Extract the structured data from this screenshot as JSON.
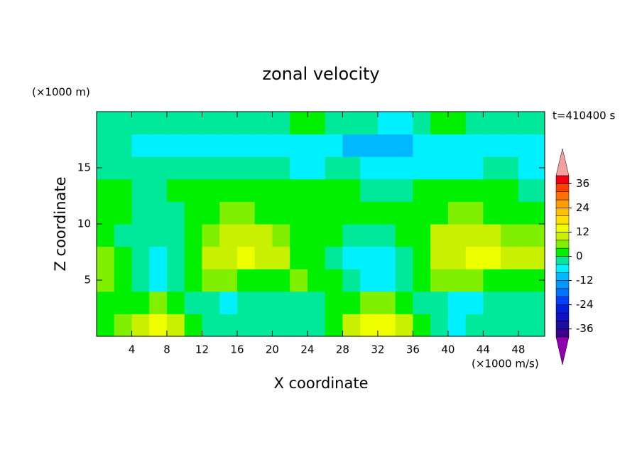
{
  "chart_data": {
    "type": "contour",
    "title": "zonal velocity",
    "x_label": "X coordinate",
    "y_label": "Z coordinate",
    "x_units": "(×1000 m/s)",
    "y_units": "(×1000 m)",
    "time_label": "t=410400 s",
    "xlim": [
      0,
      51
    ],
    "ylim": [
      0,
      20
    ],
    "xticks": [
      4,
      8,
      12,
      16,
      20,
      24,
      28,
      32,
      36,
      40,
      44,
      48
    ],
    "yticks": [
      5,
      10,
      15
    ],
    "x": [
      1,
      3,
      5,
      7,
      9,
      11,
      13,
      15,
      17,
      19,
      21,
      23,
      25,
      27,
      29,
      31,
      33,
      35,
      37,
      39,
      41,
      43,
      45,
      47,
      49
    ],
    "y": [
      1,
      3,
      5,
      7,
      9,
      11,
      13,
      15,
      17,
      19
    ],
    "z": [
      [
        2,
        6,
        10,
        14,
        10,
        2,
        -2,
        -2,
        -2,
        -2,
        -2,
        -2,
        -2,
        2,
        10,
        14,
        14,
        10,
        2,
        -2,
        -6,
        -2,
        -2,
        -2,
        -2
      ],
      [
        2,
        2,
        2,
        6,
        2,
        -2,
        -2,
        -6,
        -2,
        -2,
        -2,
        -2,
        -2,
        2,
        2,
        6,
        6,
        2,
        -2,
        -2,
        -6,
        -6,
        -2,
        -2,
        -2
      ],
      [
        6,
        2,
        -2,
        -6,
        -2,
        2,
        6,
        6,
        2,
        2,
        2,
        6,
        2,
        2,
        -2,
        -6,
        -6,
        -2,
        2,
        6,
        6,
        6,
        2,
        2,
        2
      ],
      [
        6,
        2,
        -2,
        -6,
        -2,
        2,
        10,
        10,
        14,
        10,
        10,
        2,
        2,
        -2,
        -6,
        -6,
        -6,
        -2,
        2,
        10,
        10,
        14,
        14,
        10,
        10
      ],
      [
        2,
        -2,
        -2,
        -2,
        -2,
        2,
        6,
        10,
        10,
        10,
        6,
        2,
        2,
        2,
        -2,
        -2,
        -2,
        2,
        2,
        10,
        10,
        10,
        10,
        6,
        6
      ],
      [
        2,
        2,
        -2,
        -2,
        -2,
        2,
        2,
        6,
        6,
        2,
        2,
        2,
        2,
        2,
        2,
        2,
        2,
        2,
        2,
        2,
        6,
        6,
        2,
        2,
        2
      ],
      [
        2,
        2,
        -2,
        -2,
        2,
        2,
        2,
        2,
        2,
        2,
        2,
        2,
        2,
        2,
        2,
        -2,
        -2,
        -2,
        2,
        2,
        2,
        2,
        2,
        2,
        -2
      ],
      [
        -2,
        -2,
        -2,
        -2,
        -2,
        -2,
        -2,
        -2,
        -2,
        -2,
        -2,
        -6,
        -6,
        -2,
        -2,
        -6,
        -6,
        -6,
        -6,
        -6,
        -6,
        -6,
        -2,
        -2,
        -6
      ],
      [
        -2,
        -2,
        -6,
        -6,
        -6,
        -6,
        -6,
        -6,
        -6,
        -6,
        -6,
        -6,
        -6,
        -6,
        -10,
        -10,
        -10,
        -10,
        -6,
        -6,
        -6,
        -6,
        -6,
        -6,
        -6
      ],
      [
        -2,
        -2,
        -2,
        -2,
        -2,
        -2,
        -2,
        -2,
        -2,
        -2,
        -2,
        2,
        2,
        -2,
        -2,
        -2,
        -6,
        -6,
        -2,
        2,
        2,
        -2,
        -2,
        -2,
        -2
      ]
    ],
    "levels": [
      -40,
      -36,
      -32,
      -28,
      -24,
      -20,
      -16,
      -12,
      -8,
      -4,
      0,
      4,
      8,
      12,
      16,
      20,
      24,
      28,
      32,
      36,
      40
    ],
    "colors": [
      "#3a0090",
      "#1c0ca0",
      "#1010c8",
      "#0020e0",
      "#0040ff",
      "#0070ff",
      "#0098ff",
      "#00b8ff",
      "#00f0ff",
      "#00e89a",
      "#00f000",
      "#80f000",
      "#c8f000",
      "#f0ff00",
      "#ffe000",
      "#ffc000",
      "#ff9c00",
      "#ff7000",
      "#ff4000",
      "#f00010"
    ],
    "under_color": "#9000b0",
    "over_color": "#f4a0a0",
    "colorbar_ticks": [
      -36,
      -24,
      -12,
      0,
      12,
      24,
      36
    ]
  }
}
